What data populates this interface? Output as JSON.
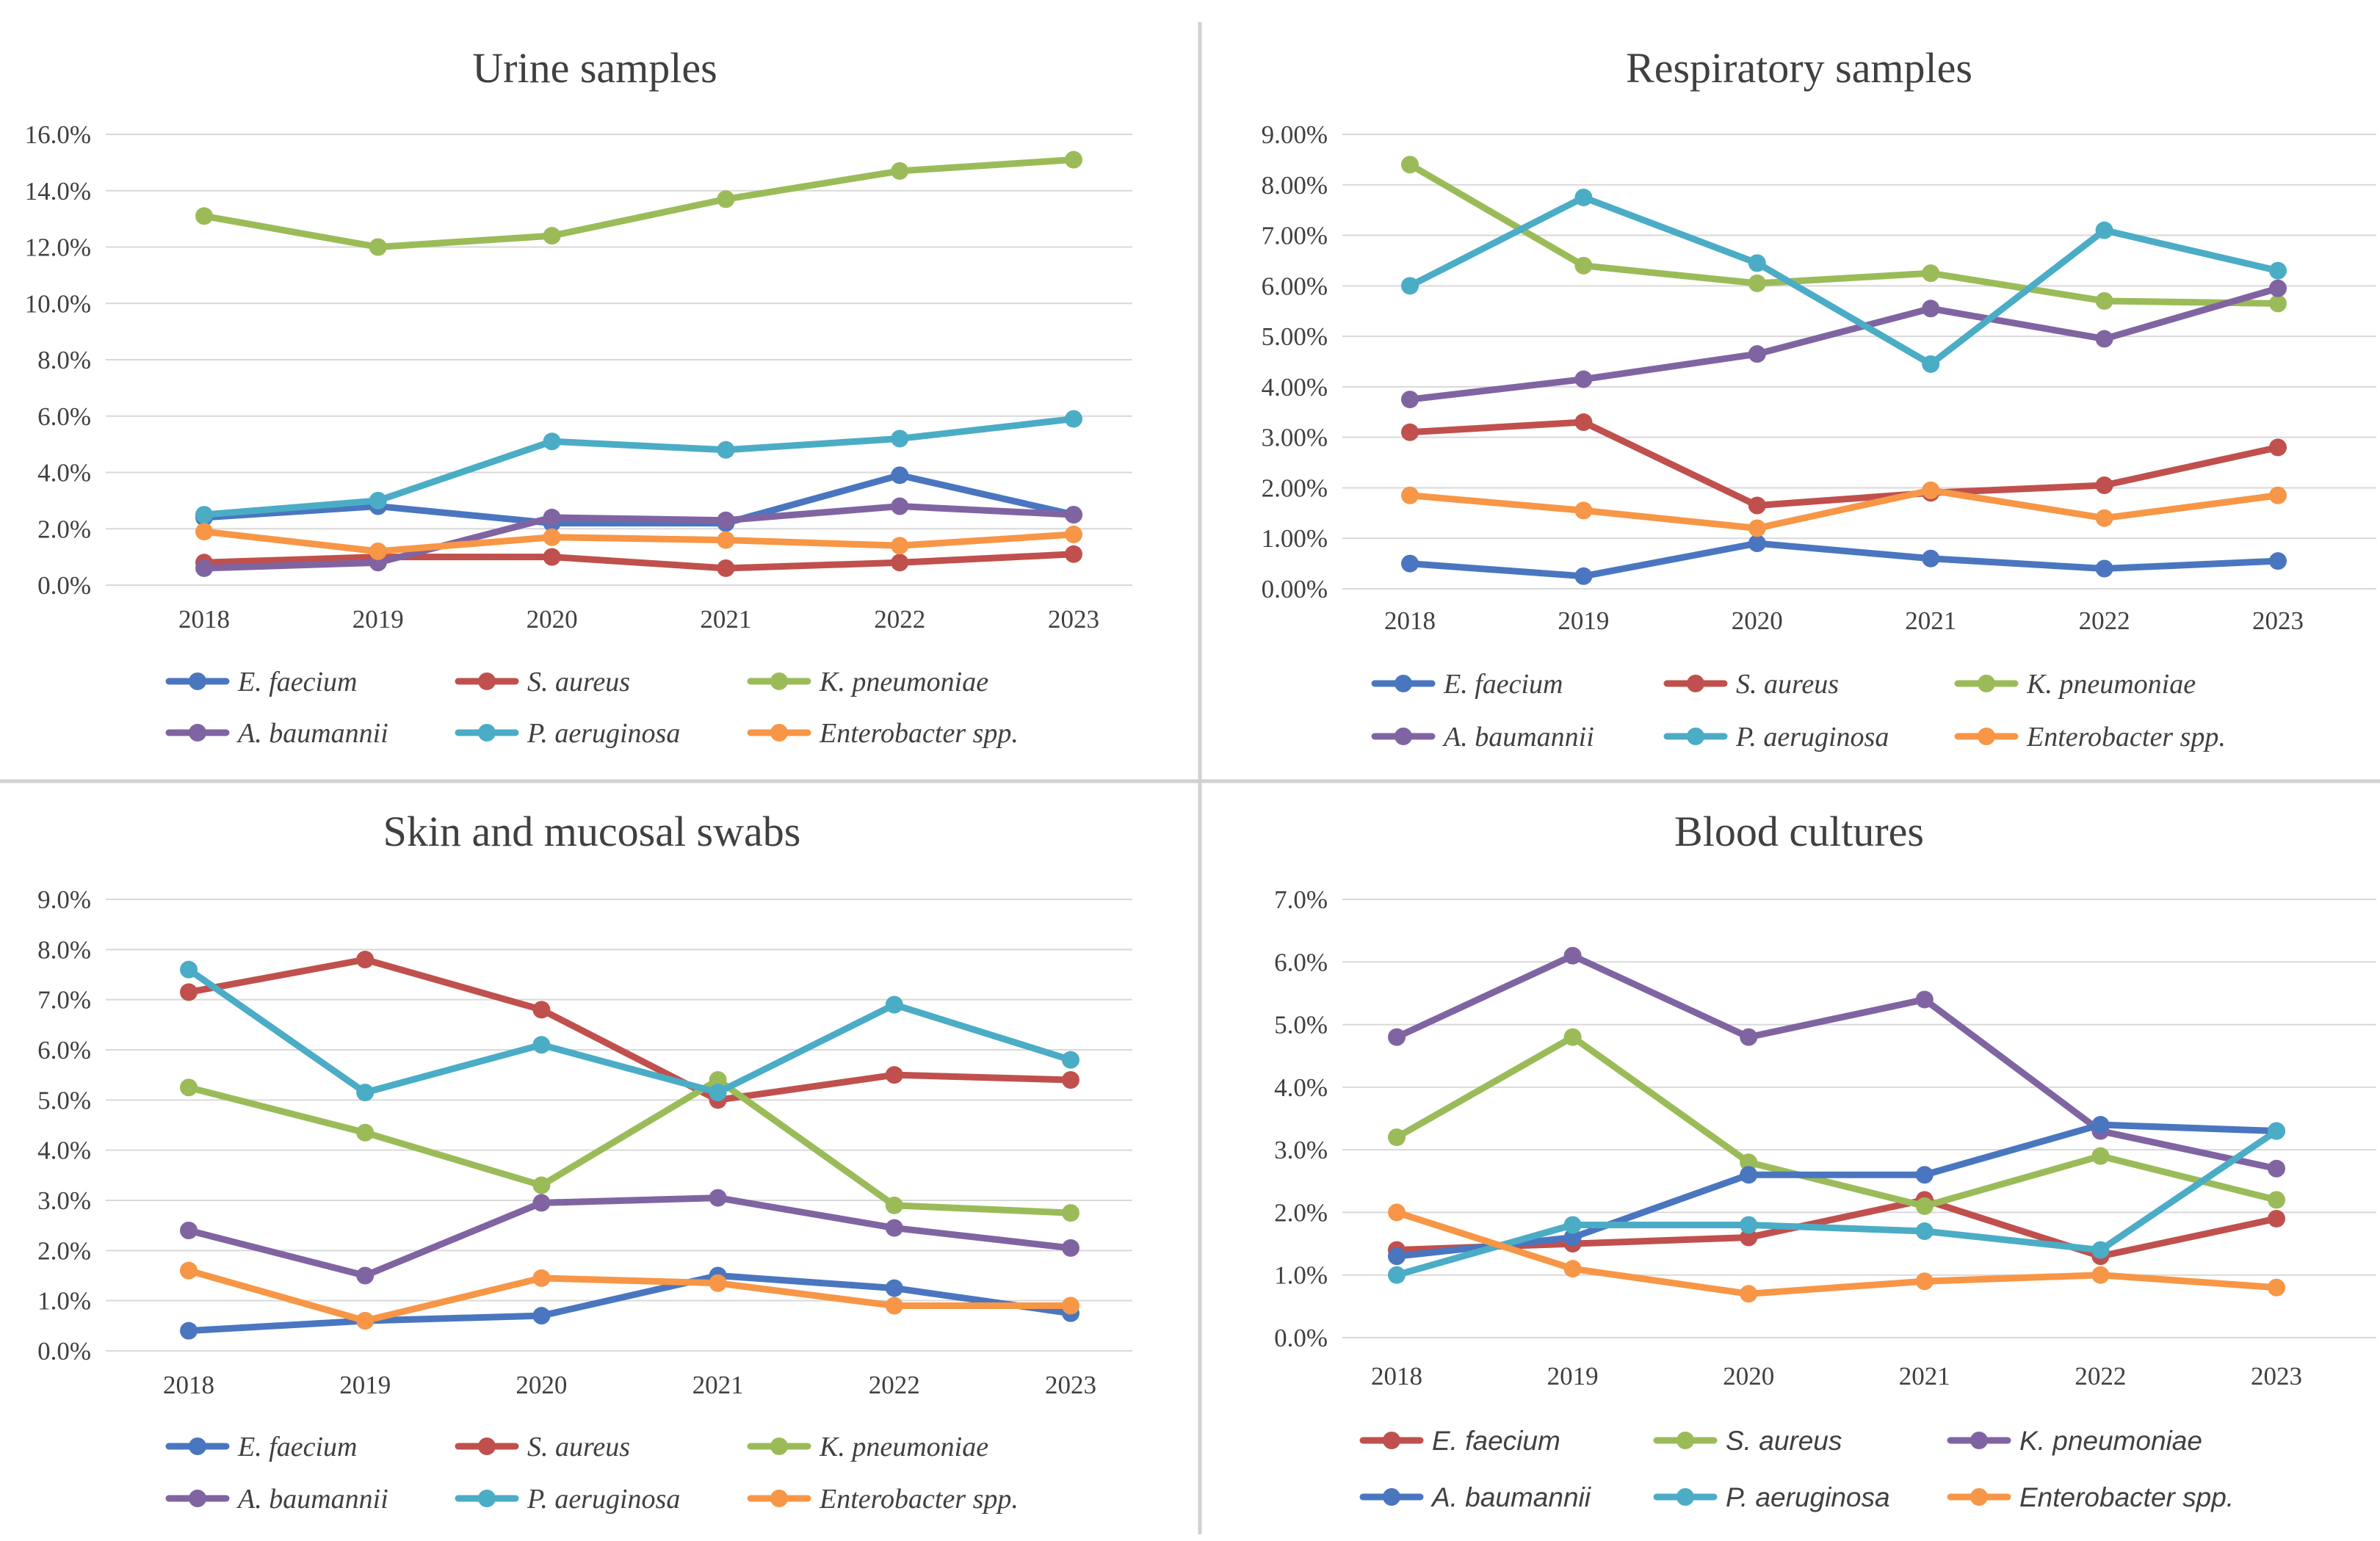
{
  "chart_data": [
    {
      "type": "line",
      "title": "Urine samples",
      "categories": [
        "2018",
        "2019",
        "2020",
        "2021",
        "2022",
        "2023"
      ],
      "y_ticks": [
        "0.0%",
        "2.0%",
        "4.0%",
        "6.0%",
        "8.0%",
        "10.0%",
        "12.0%",
        "14.0%",
        "16.0%"
      ],
      "ylim": [
        0,
        16
      ],
      "y_unit": "%",
      "grid": true,
      "legend_position": "bottom",
      "series": [
        {
          "name": "E. faecium",
          "color": "#4a76c0",
          "values": [
            2.4,
            2.8,
            2.2,
            2.2,
            3.9,
            2.5
          ]
        },
        {
          "name": "S. aureus",
          "color": "#c0504d",
          "values": [
            0.8,
            1.0,
            1.0,
            0.6,
            0.8,
            1.1
          ]
        },
        {
          "name": "K. pneumoniae",
          "color": "#9bbb59",
          "values": [
            13.1,
            12.0,
            12.4,
            13.7,
            14.7,
            15.1
          ]
        },
        {
          "name": "A. baumannii",
          "color": "#8064a2",
          "values": [
            0.6,
            0.8,
            2.4,
            2.3,
            2.8,
            2.5
          ]
        },
        {
          "name": "P. aeruginosa",
          "color": "#4bacc6",
          "values": [
            2.5,
            3.0,
            5.1,
            4.8,
            5.2,
            5.9
          ]
        },
        {
          "name": "Enterobacter spp.",
          "color": "#f79646",
          "values": [
            1.9,
            1.2,
            1.7,
            1.6,
            1.4,
            1.8
          ]
        }
      ]
    },
    {
      "type": "line",
      "title": "Respiratory samples",
      "categories": [
        "2018",
        "2019",
        "2020",
        "2021",
        "2022",
        "2023"
      ],
      "y_ticks": [
        "0.00%",
        "1.00%",
        "2.00%",
        "3.00%",
        "4.00%",
        "5.00%",
        "6.00%",
        "7.00%",
        "8.00%",
        "9.00%"
      ],
      "ylim": [
        0,
        9
      ],
      "y_unit": "%",
      "grid": true,
      "legend_position": "bottom",
      "series": [
        {
          "name": "E. faecium",
          "color": "#4a76c0",
          "values": [
            0.5,
            0.25,
            0.9,
            0.6,
            0.4,
            0.55
          ]
        },
        {
          "name": "S. aureus",
          "color": "#c0504d",
          "values": [
            3.1,
            3.3,
            1.65,
            1.9,
            2.05,
            2.8
          ]
        },
        {
          "name": "K. pneumoniae",
          "color": "#9bbb59",
          "values": [
            8.4,
            6.4,
            6.05,
            6.25,
            5.7,
            5.65
          ]
        },
        {
          "name": "A. baumannii",
          "color": "#8064a2",
          "values": [
            3.75,
            4.15,
            4.65,
            5.55,
            4.95,
            5.95
          ]
        },
        {
          "name": "P. aeruginosa",
          "color": "#4bacc6",
          "values": [
            6.0,
            7.75,
            6.45,
            4.45,
            7.1,
            6.3
          ]
        },
        {
          "name": "Enterobacter spp.",
          "color": "#f79646",
          "values": [
            1.85,
            1.55,
            1.2,
            1.95,
            1.4,
            1.85
          ]
        }
      ]
    },
    {
      "type": "line",
      "title": "Skin and mucosal swabs",
      "categories": [
        "2018",
        "2019",
        "2020",
        "2021",
        "2022",
        "2023"
      ],
      "y_ticks": [
        "0.0%",
        "1.0%",
        "2.0%",
        "3.0%",
        "4.0%",
        "5.0%",
        "6.0%",
        "7.0%",
        "8.0%",
        "9.0%"
      ],
      "ylim": [
        0,
        9
      ],
      "y_unit": "%",
      "grid": true,
      "legend_position": "bottom",
      "series": [
        {
          "name": "E. faecium",
          "color": "#4a76c0",
          "values": [
            0.4,
            0.6,
            0.7,
            1.5,
            1.25,
            0.75
          ]
        },
        {
          "name": "S. aureus",
          "color": "#c0504d",
          "values": [
            7.15,
            7.8,
            6.8,
            5.0,
            5.5,
            5.4
          ]
        },
        {
          "name": "K. pneumoniae",
          "color": "#9bbb59",
          "values": [
            5.25,
            4.35,
            3.3,
            5.4,
            2.9,
            2.75
          ]
        },
        {
          "name": "A. baumannii",
          "color": "#8064a2",
          "values": [
            2.4,
            1.5,
            2.95,
            3.05,
            2.45,
            2.05
          ]
        },
        {
          "name": "P. aeruginosa",
          "color": "#4bacc6",
          "values": [
            7.6,
            5.15,
            6.1,
            5.15,
            6.9,
            5.8
          ]
        },
        {
          "name": "Enterobacter spp.",
          "color": "#f79646",
          "values": [
            1.6,
            0.6,
            1.45,
            1.35,
            0.9,
            0.9
          ]
        }
      ]
    },
    {
      "type": "line",
      "title": "Blood cultures",
      "categories": [
        "2018",
        "2019",
        "2020",
        "2021",
        "2022",
        "2023"
      ],
      "y_ticks": [
        "0.0%",
        "1.0%",
        "2.0%",
        "3.0%",
        "4.0%",
        "5.0%",
        "6.0%",
        "7.0%"
      ],
      "ylim": [
        0,
        7
      ],
      "y_unit": "%",
      "grid": true,
      "legend_position": "bottom",
      "series": [
        {
          "name": "E. faecium",
          "color": "#c0504d",
          "values": [
            1.4,
            1.5,
            1.6,
            2.2,
            1.3,
            1.9
          ]
        },
        {
          "name": "S. aureus",
          "color": "#9bbb59",
          "values": [
            3.2,
            4.8,
            2.8,
            2.1,
            2.9,
            2.2
          ]
        },
        {
          "name": "K. pneumoniae",
          "color": "#8064a2",
          "values": [
            4.8,
            6.1,
            4.8,
            5.4,
            3.3,
            2.7
          ]
        },
        {
          "name": "A. baumannii",
          "color": "#4a76c0",
          "values": [
            1.3,
            1.6,
            2.6,
            2.6,
            3.4,
            3.3
          ]
        },
        {
          "name": "P. aeruginosa",
          "color": "#4bacc6",
          "values": [
            1.0,
            1.8,
            1.8,
            1.7,
            1.4,
            3.3
          ]
        },
        {
          "name": "Enterobacter spp.",
          "color": "#f79646",
          "values": [
            2.0,
            1.1,
            0.7,
            0.9,
            1.0,
            0.8
          ]
        }
      ]
    }
  ]
}
